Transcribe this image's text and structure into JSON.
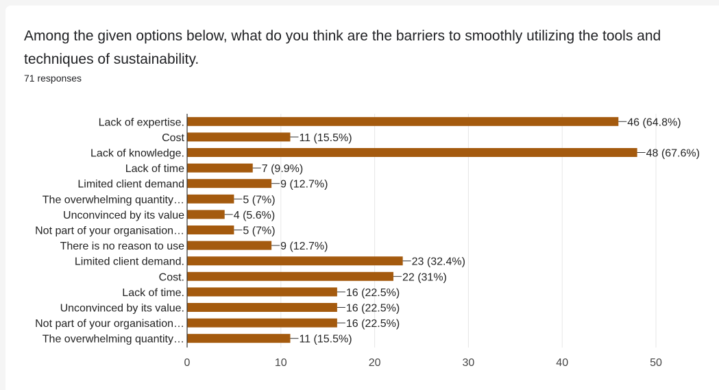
{
  "question": {
    "title": "Among the given options below, what do you think are the barriers to smoothly utilizing the tools and techniques of sustainability.",
    "responses": "71 responses"
  },
  "colors": {
    "bar": "#a45a0e",
    "grid": "#e6e6e6",
    "axis": "#333333"
  },
  "chart_data": {
    "type": "bar",
    "orientation": "horizontal",
    "categories": [
      "Lack of expertise.",
      "Cost",
      "Lack of knowledge.",
      "Lack of time",
      "Limited client demand",
      "The overwhelming quantity…",
      "Unconvinced by its value",
      "Not part of your organisation…",
      "There is no reason to use",
      "Limited client demand.",
      "Cost.",
      "Lack of time.",
      "Unconvinced by its value.",
      "Not part of your organisation…",
      "The overwhelming quantity…"
    ],
    "values": [
      46,
      11,
      48,
      7,
      9,
      5,
      4,
      5,
      9,
      23,
      22,
      16,
      16,
      16,
      11
    ],
    "value_labels": [
      "46 (64.8%)",
      "11 (15.5%)",
      "48 (67.6%)",
      "7 (9.9%)",
      "9 (12.7%)",
      "5 (7%)",
      "4 (5.6%)",
      "5 (7%)",
      "9 (12.7%)",
      "23 (32.4%)",
      "22 (31%)",
      "16 (22.5%)",
      "16 (22.5%)",
      "16 (22.5%)",
      "11 (15.5%)"
    ],
    "xticks": [
      "0",
      "10",
      "20",
      "30",
      "40",
      "50"
    ],
    "xlim": [
      0,
      50
    ],
    "grid": true
  }
}
